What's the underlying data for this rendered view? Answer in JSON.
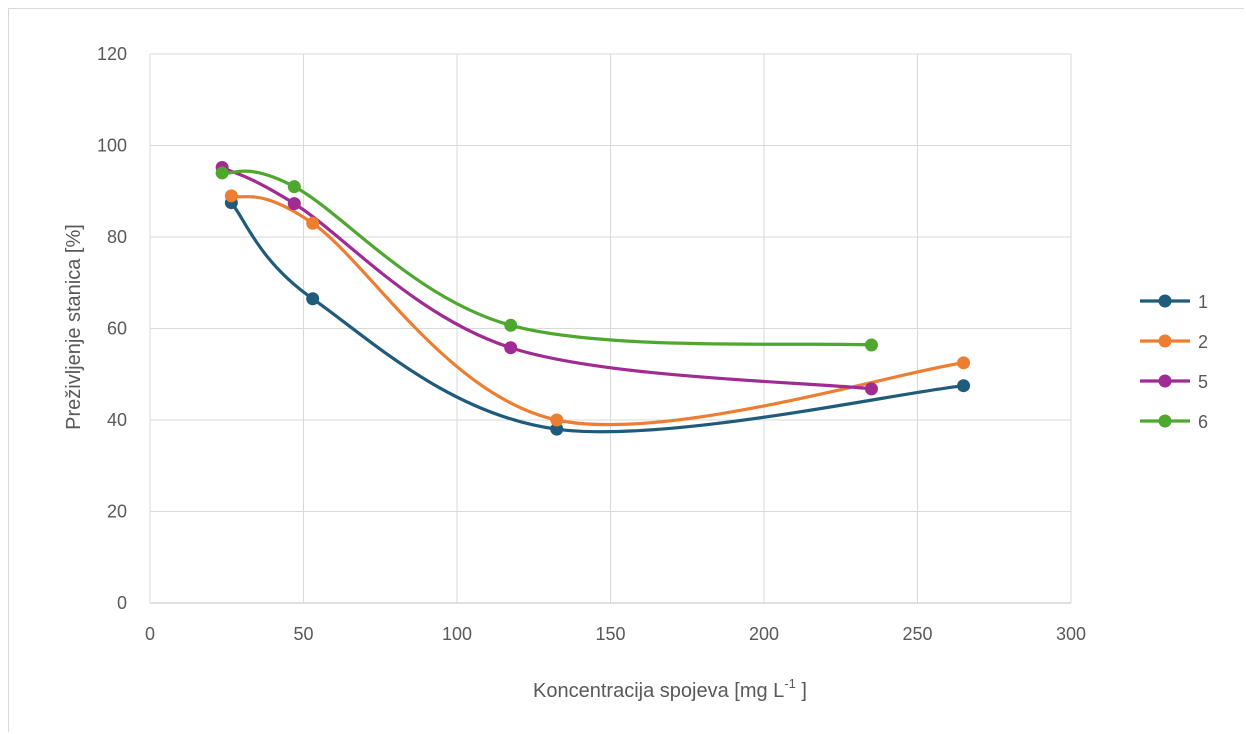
{
  "chart_data": {
    "type": "line",
    "smooth": true,
    "xlabel_main": "Koncentracija spojeva [mg L",
    "xlabel_sup": "-1",
    "xlabel_end": " ]",
    "ylabel": "Preživljenje stanica [%]",
    "xlim": [
      0,
      300
    ],
    "ylim": [
      0,
      120
    ],
    "xticks": [
      0,
      50,
      100,
      150,
      200,
      250,
      300
    ],
    "yticks": [
      0,
      20,
      40,
      60,
      80,
      100,
      120
    ],
    "grid": true,
    "legend_position": "right",
    "series": [
      {
        "name": "1",
        "color": "#1f5b7a",
        "x": [
          26.5,
          53,
          132.5,
          265
        ],
        "y": [
          87.5,
          66.5,
          38,
          47.5
        ]
      },
      {
        "name": "2",
        "color": "#ed7d31",
        "x": [
          26.5,
          53,
          132.5,
          265
        ],
        "y": [
          89,
          83,
          40,
          52.5
        ]
      },
      {
        "name": "5",
        "color": "#a02b93",
        "x": [
          23.5,
          47,
          117.5,
          235
        ],
        "y": [
          95.2,
          87.3,
          55.8,
          46.8
        ]
      },
      {
        "name": "6",
        "color": "#4ea72e",
        "x": [
          23.5,
          47,
          117.5,
          235
        ],
        "y": [
          94,
          91,
          60.7,
          56.4
        ]
      }
    ]
  }
}
